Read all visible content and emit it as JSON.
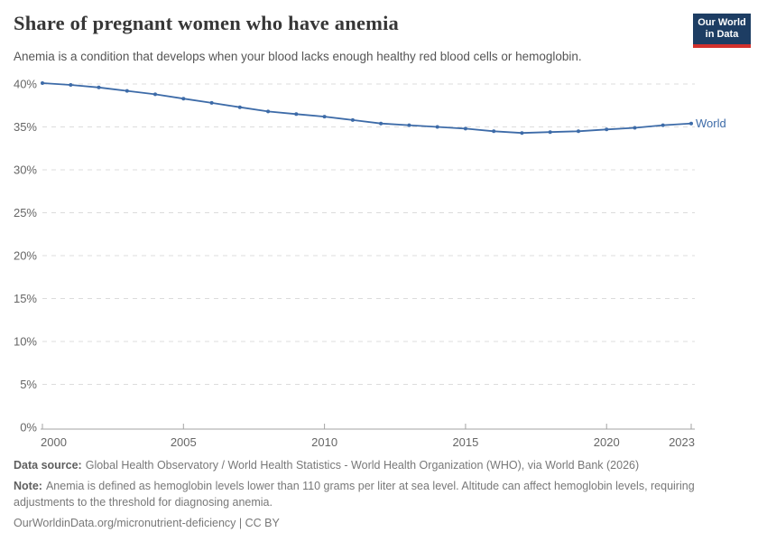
{
  "header": {
    "title": "Share of pregnant women who have anemia",
    "subtitle": "Anemia is a condition that develops when your blood lacks enough healthy red blood cells or hemoglobin.",
    "logo": {
      "line1": "Our World",
      "line2": "in Data"
    }
  },
  "chart_data": {
    "type": "line",
    "title": "Share of pregnant women who have anemia",
    "x": [
      2000,
      2001,
      2002,
      2003,
      2004,
      2005,
      2006,
      2007,
      2008,
      2009,
      2010,
      2011,
      2012,
      2013,
      2014,
      2015,
      2016,
      2017,
      2018,
      2019,
      2020,
      2021,
      2022,
      2023
    ],
    "series": [
      {
        "name": "World",
        "color": "#3d6ba8",
        "values": [
          40.1,
          39.9,
          39.6,
          39.2,
          38.8,
          38.3,
          37.8,
          37.3,
          36.8,
          36.5,
          36.2,
          35.8,
          35.4,
          35.2,
          35.0,
          34.8,
          34.5,
          34.3,
          34.4,
          34.5,
          34.7,
          34.9,
          35.2,
          35.4
        ]
      }
    ],
    "xlabel": "",
    "ylabel": "",
    "ylim": [
      0,
      40
    ],
    "yticks": [
      0,
      5,
      10,
      15,
      20,
      25,
      30,
      35,
      40
    ],
    "ytick_suffix": "%",
    "xticks": [
      2000,
      2005,
      2010,
      2015,
      2020,
      2023
    ],
    "grid": "horizontal-dashed",
    "legend_position": "end-of-line"
  },
  "colors": {
    "gridline": "#dcdcdc",
    "axis": "#a3a3a3",
    "tick_label": "#666666",
    "line": "#3d6ba8",
    "logo_bg": "#1d3d63",
    "logo_accent": "#d2302c"
  },
  "footer": {
    "data_source_label": "Data source:",
    "data_source": "Global Health Observatory / World Health Statistics - World Health Organization (WHO), via World Bank (2026)",
    "note_label": "Note:",
    "note": "Anemia is defined as hemoglobin levels lower than 110 grams per liter at sea level. Altitude can affect hemoglobin levels, requiring adjustments to the threshold for diagnosing anemia.",
    "license": "OurWorldinData.org/micronutrient-deficiency | CC BY"
  }
}
